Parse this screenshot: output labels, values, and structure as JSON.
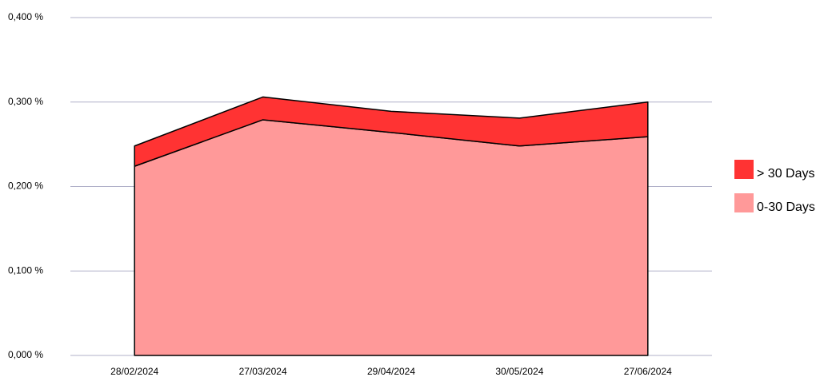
{
  "chart_data": {
    "type": "stacked-area",
    "categories": [
      "28/02/2024",
      "27/03/2024",
      "29/04/2024",
      "30/05/2024",
      "27/06/2024"
    ],
    "series": [
      {
        "name": "> 30 Days",
        "color": "#ff3333",
        "values": [
          0.024,
          0.027,
          0.025,
          0.033,
          0.041
        ]
      },
      {
        "name": "0-30 Days",
        "color": "#ff9999",
        "values": [
          0.224,
          0.279,
          0.264,
          0.248,
          0.259
        ]
      }
    ],
    "ylim": [
      0,
      0.4
    ],
    "yticks": [
      {
        "value": 0,
        "label": "0,000 %"
      },
      {
        "value": 0.1,
        "label": "0,100 %"
      },
      {
        "value": 0.2,
        "label": "0,200 %"
      },
      {
        "value": 0.3,
        "label": "0,300 %"
      },
      {
        "value": 0.4,
        "label": "0,400 %"
      }
    ],
    "grid": true
  }
}
